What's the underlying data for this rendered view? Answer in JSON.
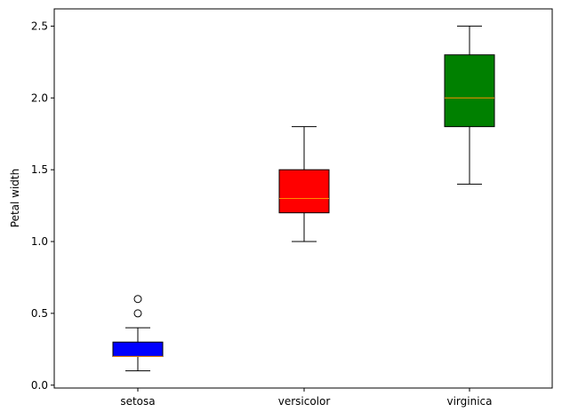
{
  "chart_data": {
    "type": "box",
    "title": "",
    "xlabel": "",
    "ylabel": "Petal width",
    "ylim": [
      -0.02,
      2.62
    ],
    "yticks": [
      0.0,
      0.5,
      1.0,
      1.5,
      2.0,
      2.5
    ],
    "ytick_labels": [
      "0.0",
      "0.5",
      "1.0",
      "1.5",
      "2.0",
      "2.5"
    ],
    "categories": [
      "setosa",
      "versicolor",
      "virginica"
    ],
    "grid": false,
    "legend": "none",
    "boxes": [
      {
        "category": "setosa",
        "whisker_low": 0.1,
        "q1": 0.2,
        "median": 0.2,
        "q3": 0.3,
        "whisker_high": 0.4,
        "outliers": [
          0.5,
          0.6
        ],
        "color": "#0000ff"
      },
      {
        "category": "versicolor",
        "whisker_low": 1.0,
        "q1": 1.2,
        "median": 1.3,
        "q3": 1.5,
        "whisker_high": 1.8,
        "outliers": [],
        "color": "#ff0000"
      },
      {
        "category": "virginica",
        "whisker_low": 1.4,
        "q1": 1.8,
        "median": 2.0,
        "q3": 2.3,
        "whisker_high": 2.5,
        "outliers": [],
        "color": "#008000"
      }
    ],
    "median_color": "#ff8c00"
  }
}
